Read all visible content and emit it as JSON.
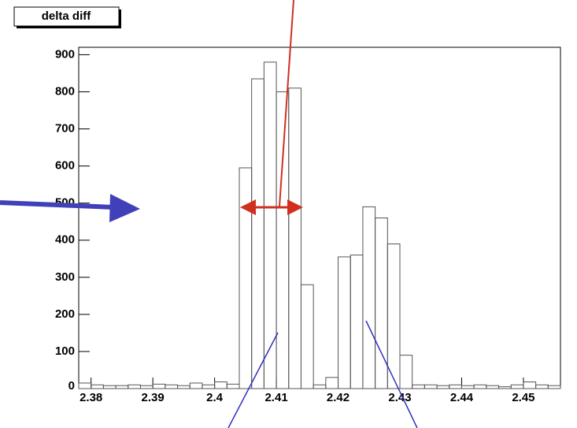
{
  "chart_data": {
    "type": "histogram",
    "title": "delta diff",
    "bins": [
      2.378,
      2.38,
      2.382,
      2.384,
      2.386,
      2.388,
      2.39,
      2.392,
      2.394,
      2.396,
      2.398,
      2.4,
      2.402,
      2.404,
      2.406,
      2.408,
      2.41,
      2.412,
      2.414,
      2.416,
      2.418,
      2.42,
      2.422,
      2.424,
      2.426,
      2.428,
      2.43,
      2.432,
      2.434,
      2.436,
      2.438,
      2.44,
      2.442,
      2.444,
      2.446,
      2.448,
      2.45,
      2.452,
      2.454,
      2.456
    ],
    "values": [
      15,
      10,
      8,
      8,
      10,
      8,
      12,
      10,
      8,
      15,
      10,
      18,
      12,
      595,
      835,
      880,
      800,
      810,
      280,
      10,
      30,
      355,
      360,
      490,
      460,
      390,
      90,
      10,
      10,
      8,
      10,
      8,
      10,
      8,
      5,
      10,
      18,
      10,
      8
    ],
    "color": "#555555",
    "xlim": [
      2.378,
      2.456
    ],
    "xticks": [
      2.38,
      2.39,
      2.4,
      2.41,
      2.42,
      2.43,
      2.44,
      2.45
    ],
    "ylim": [
      0,
      920
    ],
    "yticks": [
      0,
      100,
      200,
      300,
      400,
      500,
      600,
      700,
      800,
      900
    ]
  }
}
